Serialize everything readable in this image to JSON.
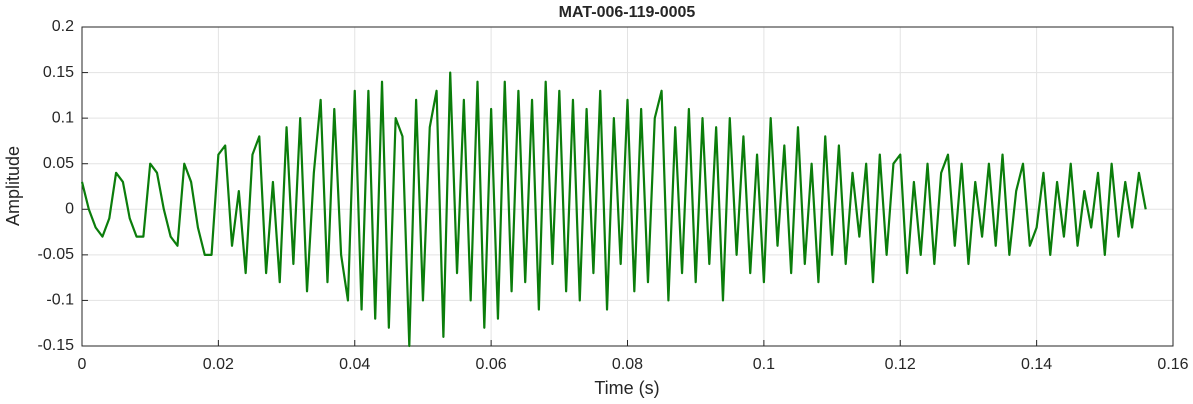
{
  "chart_data": {
    "type": "line",
    "title": "MAT-006-119-0005",
    "xlabel": "Time (s)",
    "ylabel": "Amplitude",
    "x": [
      0,
      0.001,
      0.002,
      0.003,
      0.004,
      0.005,
      0.006,
      0.007,
      0.008,
      0.009,
      0.01,
      0.011,
      0.012,
      0.013,
      0.014,
      0.015,
      0.016,
      0.017,
      0.018,
      0.019,
      0.02,
      0.021,
      0.022,
      0.023,
      0.024,
      0.025,
      0.026,
      0.027,
      0.028,
      0.029,
      0.03,
      0.031,
      0.032,
      0.033,
      0.034,
      0.035,
      0.036,
      0.037,
      0.038,
      0.039,
      0.04,
      0.041,
      0.042,
      0.043,
      0.044,
      0.045,
      0.046,
      0.047,
      0.048,
      0.049,
      0.05,
      0.051,
      0.052,
      0.053,
      0.054,
      0.055,
      0.056,
      0.057,
      0.058,
      0.059,
      0.06,
      0.061,
      0.062,
      0.063,
      0.064,
      0.065,
      0.066,
      0.067,
      0.068,
      0.069,
      0.07,
      0.071,
      0.072,
      0.073,
      0.074,
      0.075,
      0.076,
      0.077,
      0.078,
      0.079,
      0.08,
      0.081,
      0.082,
      0.083,
      0.084,
      0.085,
      0.086,
      0.087,
      0.088,
      0.089,
      0.09,
      0.091,
      0.092,
      0.093,
      0.094,
      0.095,
      0.096,
      0.097,
      0.098,
      0.099,
      0.1,
      0.101,
      0.102,
      0.103,
      0.104,
      0.105,
      0.106,
      0.107,
      0.108,
      0.109,
      0.11,
      0.111,
      0.112,
      0.113,
      0.114,
      0.115,
      0.116,
      0.117,
      0.118,
      0.119,
      0.12,
      0.121,
      0.122,
      0.123,
      0.124,
      0.125,
      0.126,
      0.127,
      0.128,
      0.129,
      0.13,
      0.131,
      0.132,
      0.133,
      0.134,
      0.135,
      0.136,
      0.137,
      0.138,
      0.139,
      0.14,
      0.141,
      0.142,
      0.143,
      0.144,
      0.145,
      0.146,
      0.147,
      0.148,
      0.149,
      0.15,
      0.151,
      0.152,
      0.153,
      0.154,
      0.155,
      0.156
    ],
    "series": [
      {
        "color": "#0b7d0b",
        "values": [
          0.03,
          0.0,
          -0.02,
          -0.03,
          -0.01,
          0.04,
          0.03,
          -0.01,
          -0.03,
          -0.03,
          0.05,
          0.04,
          0.0,
          -0.03,
          -0.04,
          0.05,
          0.03,
          -0.02,
          -0.05,
          -0.05,
          0.06,
          0.07,
          -0.04,
          0.02,
          -0.07,
          0.06,
          0.08,
          -0.07,
          0.03,
          -0.08,
          0.09,
          -0.06,
          0.1,
          -0.09,
          0.04,
          0.12,
          -0.08,
          0.11,
          -0.05,
          -0.1,
          0.13,
          -0.11,
          0.13,
          -0.12,
          0.14,
          -0.13,
          0.1,
          0.08,
          -0.15,
          0.12,
          -0.1,
          0.09,
          0.13,
          -0.14,
          0.15,
          -0.07,
          0.12,
          -0.1,
          0.14,
          -0.13,
          0.11,
          -0.12,
          0.14,
          -0.09,
          0.13,
          -0.08,
          0.12,
          -0.11,
          0.14,
          -0.06,
          0.13,
          -0.09,
          0.12,
          -0.1,
          0.11,
          -0.07,
          0.13,
          -0.11,
          0.1,
          -0.06,
          0.12,
          -0.09,
          0.11,
          -0.08,
          0.1,
          0.13,
          -0.1,
          0.09,
          -0.07,
          0.11,
          -0.08,
          0.1,
          -0.06,
          0.09,
          -0.1,
          0.1,
          -0.05,
          0.08,
          -0.07,
          0.06,
          -0.08,
          0.1,
          -0.04,
          0.07,
          -0.07,
          0.09,
          -0.06,
          0.05,
          -0.08,
          0.08,
          -0.05,
          0.07,
          -0.06,
          0.04,
          -0.03,
          0.05,
          -0.08,
          0.06,
          -0.05,
          0.05,
          0.06,
          -0.07,
          0.03,
          -0.05,
          0.05,
          -0.06,
          0.04,
          0.06,
          -0.04,
          0.05,
          -0.06,
          0.03,
          -0.03,
          0.05,
          -0.04,
          0.06,
          -0.05,
          0.02,
          0.05,
          -0.04,
          -0.02,
          0.04,
          -0.05,
          0.03,
          -0.03,
          0.05,
          -0.04,
          0.02,
          -0.02,
          0.04,
          -0.05,
          0.05,
          -0.03,
          0.03,
          -0.02,
          0.04,
          0.0
        ]
      }
    ],
    "xlim": [
      0,
      0.16
    ],
    "xticks": [
      0,
      0.02,
      0.04,
      0.06,
      0.08,
      0.1,
      0.12,
      0.14,
      0.16
    ],
    "ylim": [
      -0.15,
      0.2
    ],
    "yticks": [
      -0.15,
      -0.1,
      -0.05,
      0,
      0.05,
      0.1,
      0.15,
      0.2
    ],
    "grid": true
  }
}
